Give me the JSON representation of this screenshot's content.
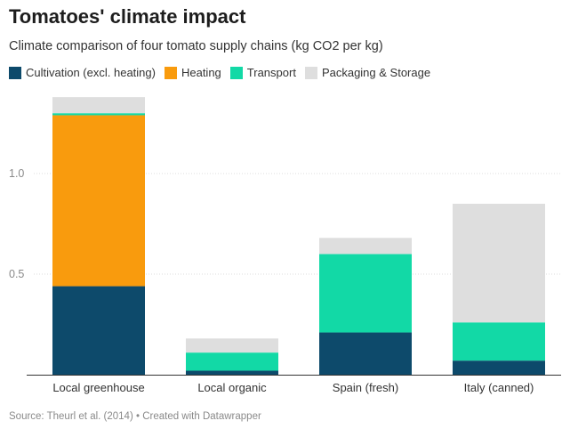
{
  "header": {
    "title": "Tomatoes' climate impact",
    "subtitle": "Climate comparison of four tomato supply chains (kg CO2 per kg)"
  },
  "footer": {
    "source": "Source: Theurl et al. (2014) • Created with Datawrapper"
  },
  "chart_data": {
    "type": "bar",
    "stacked": true,
    "title": "Tomatoes' climate impact",
    "subtitle": "Climate comparison of four tomato supply chains (kg CO2 per kg)",
    "categories": [
      "Local greenhouse",
      "Local organic",
      "Spain (fresh)",
      "Italy (canned)"
    ],
    "series": [
      {
        "name": "Cultivation (excl. heating)",
        "color": "#0d4a6b",
        "values": [
          0.44,
          0.02,
          0.21,
          0.07
        ]
      },
      {
        "name": "Heating",
        "color": "#f99b0d",
        "values": [
          0.85,
          0.0,
          0.0,
          0.0
        ]
      },
      {
        "name": "Transport",
        "color": "#12d9a6",
        "values": [
          0.01,
          0.09,
          0.39,
          0.19
        ]
      },
      {
        "name": "Packaging & Storage",
        "color": "#dedede",
        "values": [
          0.08,
          0.07,
          0.08,
          0.59
        ]
      }
    ],
    "yticks": [
      0.5,
      1.0
    ],
    "ytick_labels": [
      "0.5",
      "1.0"
    ],
    "ylim": [
      0,
      1.4
    ],
    "grid": true,
    "legend": "top-left",
    "xlabel": "",
    "ylabel": ""
  }
}
